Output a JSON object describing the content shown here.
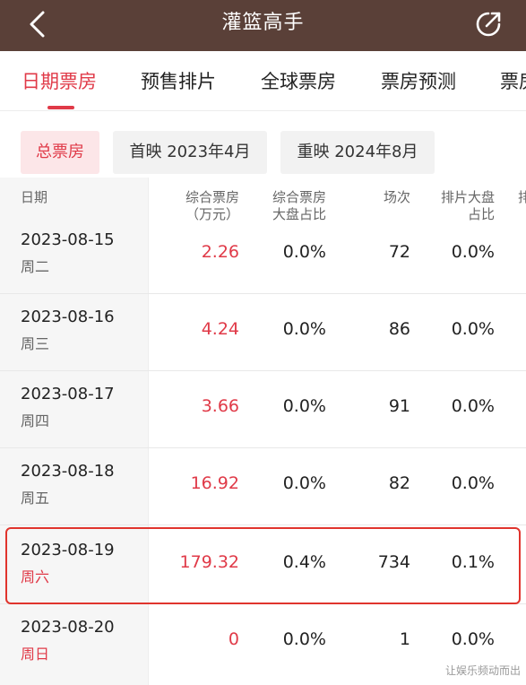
{
  "header": {
    "title": "灌篮高手",
    "back_icon": "chevron-left-icon",
    "share_icon": "share-icon",
    "bg_color": "#5a4038"
  },
  "tabs": [
    {
      "label": "日期票房",
      "active": true
    },
    {
      "label": "预售排片",
      "active": false
    },
    {
      "label": "全球票房",
      "active": false
    },
    {
      "label": "票房预测",
      "active": false
    },
    {
      "label": "票房",
      "active": false
    }
  ],
  "filters": [
    {
      "label": "总票房",
      "active": true
    },
    {
      "label": "首映 2023年4月",
      "active": false
    },
    {
      "label": "重映 2024年8月",
      "active": false
    }
  ],
  "table": {
    "headers": {
      "date": "日期",
      "box_office_line1": "综合票房",
      "box_office_line2": "（万元）",
      "share_line1": "综合票房",
      "share_line2": "大盘占比",
      "shows": "场次",
      "schedule_line1": "排片大盘",
      "schedule_line2": "占比",
      "extra": "排"
    },
    "rows": [
      {
        "date": "2023-08-15",
        "weekday": "周二",
        "weekend": false,
        "box_office": "2.26",
        "share": "0.0%",
        "shows": "72",
        "schedule": "0.0%"
      },
      {
        "date": "2023-08-16",
        "weekday": "周三",
        "weekend": false,
        "box_office": "4.24",
        "share": "0.0%",
        "shows": "86",
        "schedule": "0.0%"
      },
      {
        "date": "2023-08-17",
        "weekday": "周四",
        "weekend": false,
        "box_office": "3.66",
        "share": "0.0%",
        "shows": "91",
        "schedule": "0.0%"
      },
      {
        "date": "2023-08-18",
        "weekday": "周五",
        "weekend": false,
        "box_office": "16.92",
        "share": "0.0%",
        "shows": "82",
        "schedule": "0.0%"
      },
      {
        "date": "2023-08-19",
        "weekday": "周六",
        "weekend": true,
        "box_office": "179.32",
        "share": "0.4%",
        "shows": "734",
        "schedule": "0.1%",
        "highlighted": true
      },
      {
        "date": "2023-08-20",
        "weekday": "周日",
        "weekend": true,
        "box_office": "0",
        "share": "0.0%",
        "shows": "1",
        "schedule": "0.0%"
      }
    ]
  },
  "watermark": "让娱乐频动而出",
  "colors": {
    "accent": "#e03a48",
    "highlight_border": "#e0342d"
  }
}
